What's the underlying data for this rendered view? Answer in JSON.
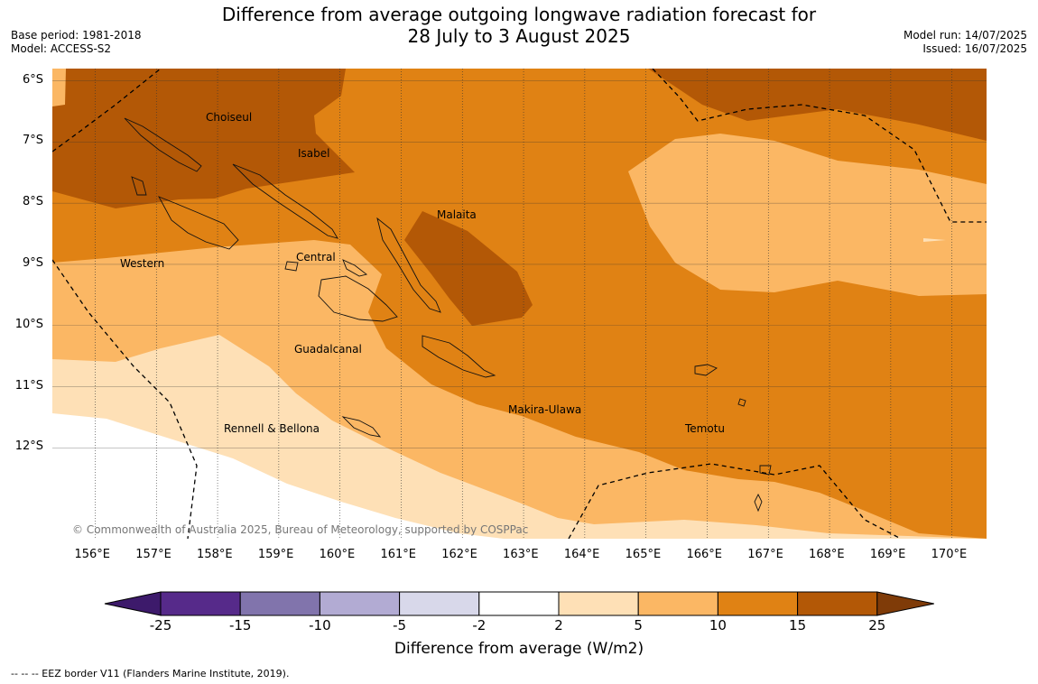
{
  "header": {
    "title_line1": "Difference from average outgoing longwave radiation forecast for",
    "title_line2": "28 July to 3 August 2025",
    "base_period": "Base period: 1981-2018",
    "model": "Model: ACCESS-S2",
    "model_run": "Model run: 14/07/2025",
    "issued": "Issued: 16/07/2025"
  },
  "map": {
    "lat_labels": [
      "6°S",
      "7°S",
      "8°S",
      "9°S",
      "10°S",
      "11°S",
      "12°S"
    ],
    "lon_labels": [
      "156°E",
      "157°E",
      "158°E",
      "159°E",
      "160°E",
      "161°E",
      "162°E",
      "163°E",
      "164°E",
      "165°E",
      "166°E",
      "167°E",
      "168°E",
      "169°E",
      "170°E"
    ],
    "regions": {
      "choiseul": "Choiseul",
      "isabel": "Isabel",
      "malaita": "Malaita",
      "western": "Western",
      "central": "Central",
      "guadalcanal": "Guadalcanal",
      "makira": "Makira-Ulawa",
      "rennell": "Rennell & Bellona",
      "temotu": "Temotu"
    },
    "copyright": "© Commonwealth of Australia 2025, Bureau of Meteorology, supported by COSPPac"
  },
  "colorbar": {
    "ticks": [
      "-25",
      "-15",
      "-10",
      "-5",
      "-2",
      "2",
      "5",
      "10",
      "15",
      "25"
    ],
    "colors": [
      "#3d1a6b",
      "#562a8a",
      "#8174ac",
      "#b2abd3",
      "#d8d8ea",
      "#ffffff",
      "#fee0b6",
      "#fbb764",
      "#e08214",
      "#b35806",
      "#7f3b08"
    ],
    "title": "Difference from average (W/m2)"
  },
  "footer": {
    "legend": "--  --  -- EEZ border V11 (Flanders Marine Institute, 2019)."
  }
}
